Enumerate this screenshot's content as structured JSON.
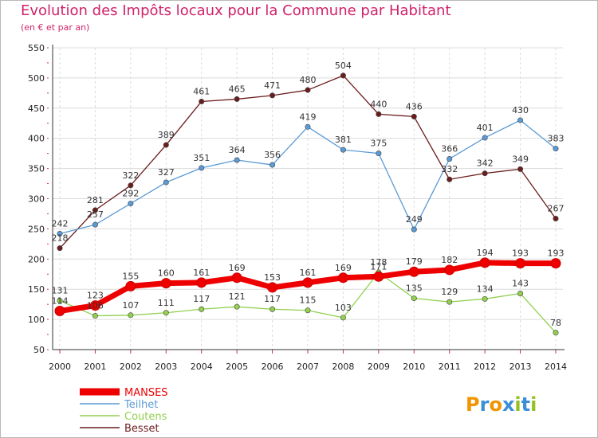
{
  "chart_data": {
    "type": "line",
    "title": "Evolution des Impôts locaux pour la Commune par Habitant",
    "subtitle": "(en € et par an)",
    "xlabel": "",
    "ylabel": "",
    "x": [
      "2000",
      "2001",
      "2002",
      "2003",
      "2004",
      "2005",
      "2006",
      "2007",
      "2008",
      "2009",
      "2010",
      "2011",
      "2012",
      "2013",
      "2014"
    ],
    "ylim": [
      50,
      550
    ],
    "yticks": [
      50,
      100,
      150,
      200,
      250,
      300,
      350,
      400,
      450,
      500,
      550
    ],
    "grid": true,
    "legend_position": "bottom-left",
    "series": [
      {
        "name": "MANSES",
        "color": "#ee0000",
        "values": [
          114,
          123,
          155,
          160,
          161,
          169,
          153,
          161,
          169,
          171,
          179,
          182,
          194,
          193,
          193
        ]
      },
      {
        "name": "Teilhet",
        "color": "#5b9bd5",
        "values": [
          242,
          257,
          292,
          327,
          351,
          364,
          356,
          419,
          381,
          375,
          249,
          366,
          401,
          430,
          383
        ]
      },
      {
        "name": "Coutens",
        "color": "#92d050",
        "values": [
          131,
          106,
          107,
          111,
          117,
          121,
          117,
          115,
          103,
          178,
          135,
          129,
          134,
          143,
          78
        ]
      },
      {
        "name": "Besset",
        "color": "#6b1d1d",
        "values": [
          218,
          281,
          322,
          389,
          461,
          465,
          471,
          480,
          504,
          440,
          436,
          332,
          342,
          349,
          267
        ]
      }
    ]
  },
  "logo": {
    "letters": [
      "P",
      "r",
      "o",
      "x",
      "i",
      "t",
      "i"
    ],
    "colors": [
      "#f29400",
      "#3a8fd6",
      "#f29400",
      "#3a8fd6",
      "#95c11f",
      "#3a8fd6",
      "#95c11f"
    ]
  }
}
